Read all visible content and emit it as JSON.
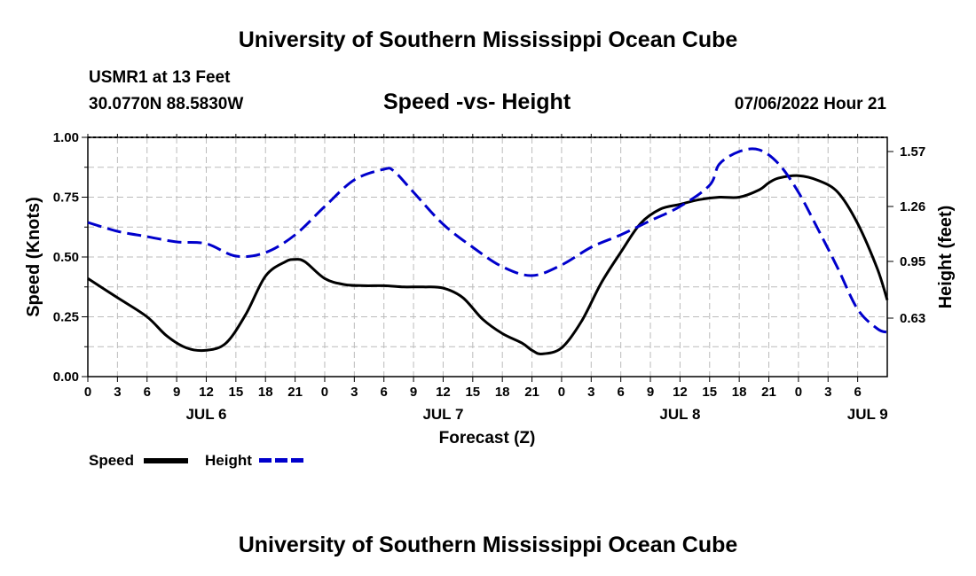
{
  "header": {
    "title": "University of Southern Mississippi Ocean Cube",
    "station": "USMR1 at 13 Feet",
    "coords": "30.0770N  88.5830W",
    "chart_title": "Speed -vs- Height",
    "datetime": "07/06/2022 Hour 21"
  },
  "footer": {
    "title": "University of Southern Mississippi Ocean Cube"
  },
  "legend": {
    "speed_label": "Speed",
    "height_label": "Height",
    "speed_color": "#000000",
    "height_color": "#0000cc"
  },
  "chart_data": {
    "type": "line",
    "title": "Speed -vs- Height",
    "xlabel": "Forecast (Z)",
    "ylabel": "Speed (Knots)",
    "y2label": "Height (feet)",
    "x_range_hours": [
      0,
      81
    ],
    "x_ticks": [
      {
        "h": 0,
        "label": "0"
      },
      {
        "h": 3,
        "label": "3"
      },
      {
        "h": 6,
        "label": "6"
      },
      {
        "h": 9,
        "label": "9"
      },
      {
        "h": 12,
        "label": "12"
      },
      {
        "h": 15,
        "label": "15"
      },
      {
        "h": 18,
        "label": "18"
      },
      {
        "h": 21,
        "label": "21"
      },
      {
        "h": 24,
        "label": "0"
      },
      {
        "h": 27,
        "label": "3"
      },
      {
        "h": 30,
        "label": "6"
      },
      {
        "h": 33,
        "label": "9"
      },
      {
        "h": 36,
        "label": "12"
      },
      {
        "h": 39,
        "label": "15"
      },
      {
        "h": 42,
        "label": "18"
      },
      {
        "h": 45,
        "label": "21"
      },
      {
        "h": 48,
        "label": "0"
      },
      {
        "h": 51,
        "label": "3"
      },
      {
        "h": 54,
        "label": "6"
      },
      {
        "h": 57,
        "label": "9"
      },
      {
        "h": 60,
        "label": "12"
      },
      {
        "h": 63,
        "label": "15"
      },
      {
        "h": 66,
        "label": "18"
      },
      {
        "h": 69,
        "label": "21"
      },
      {
        "h": 72,
        "label": "0"
      },
      {
        "h": 75,
        "label": "3"
      },
      {
        "h": 78,
        "label": "6"
      }
    ],
    "day_labels": [
      {
        "h": 12,
        "label": "JUL 6"
      },
      {
        "h": 36,
        "label": "JUL 7"
      },
      {
        "h": 60,
        "label": "JUL 8"
      },
      {
        "h": 79,
        "label": "JUL 9"
      }
    ],
    "ylim": [
      0,
      1
    ],
    "y_ticks": [
      {
        "v": 0,
        "label": "0.00"
      },
      {
        "v": 0.25,
        "label": "0.25"
      },
      {
        "v": 0.5,
        "label": "0.50"
      },
      {
        "v": 0.75,
        "label": "0.75"
      },
      {
        "v": 1.0,
        "label": "1.00"
      }
    ],
    "y2lim": [
      0.3,
      1.65
    ],
    "y2_ticks": [
      {
        "v": 0.63,
        "label": "0.63"
      },
      {
        "v": 0.95,
        "label": "0.95"
      },
      {
        "v": 1.26,
        "label": "1.26"
      },
      {
        "v": 1.57,
        "label": "1.57"
      }
    ],
    "series": [
      {
        "name": "Speed",
        "axis": "left",
        "color": "#000000",
        "dash": false,
        "x": [
          0,
          3,
          6,
          8,
          10,
          12,
          14,
          16,
          18,
          20,
          21,
          22,
          24,
          26,
          28,
          30,
          32,
          34,
          36,
          38,
          40,
          42,
          44,
          45,
          46,
          48,
          50,
          52,
          54,
          56,
          58,
          60,
          62,
          64,
          66,
          68,
          69,
          70,
          72,
          74,
          76,
          78,
          80,
          81
        ],
        "y": [
          0.41,
          0.33,
          0.25,
          0.17,
          0.12,
          0.11,
          0.14,
          0.26,
          0.42,
          0.48,
          0.49,
          0.48,
          0.41,
          0.385,
          0.38,
          0.38,
          0.375,
          0.375,
          0.37,
          0.33,
          0.24,
          0.18,
          0.14,
          0.11,
          0.095,
          0.12,
          0.23,
          0.39,
          0.52,
          0.64,
          0.7,
          0.72,
          0.74,
          0.75,
          0.75,
          0.78,
          0.81,
          0.83,
          0.84,
          0.82,
          0.77,
          0.64,
          0.45,
          0.32
        ]
      },
      {
        "name": "Height",
        "axis": "right",
        "color": "#0000cc",
        "dash": true,
        "x": [
          0,
          3,
          6,
          9,
          12,
          15,
          18,
          21,
          24,
          27,
          30,
          31,
          33,
          36,
          39,
          42,
          45,
          48,
          51,
          54,
          57,
          60,
          63,
          64,
          66,
          68,
          70,
          72,
          74,
          76,
          78,
          80,
          81
        ],
        "y": [
          1.17,
          1.12,
          1.09,
          1.06,
          1.05,
          0.98,
          1.0,
          1.1,
          1.26,
          1.41,
          1.47,
          1.46,
          1.34,
          1.16,
          1.03,
          0.92,
          0.87,
          0.93,
          1.03,
          1.1,
          1.18,
          1.26,
          1.38,
          1.5,
          1.57,
          1.58,
          1.5,
          1.34,
          1.13,
          0.91,
          0.68,
          0.57,
          0.55
        ]
      }
    ]
  }
}
